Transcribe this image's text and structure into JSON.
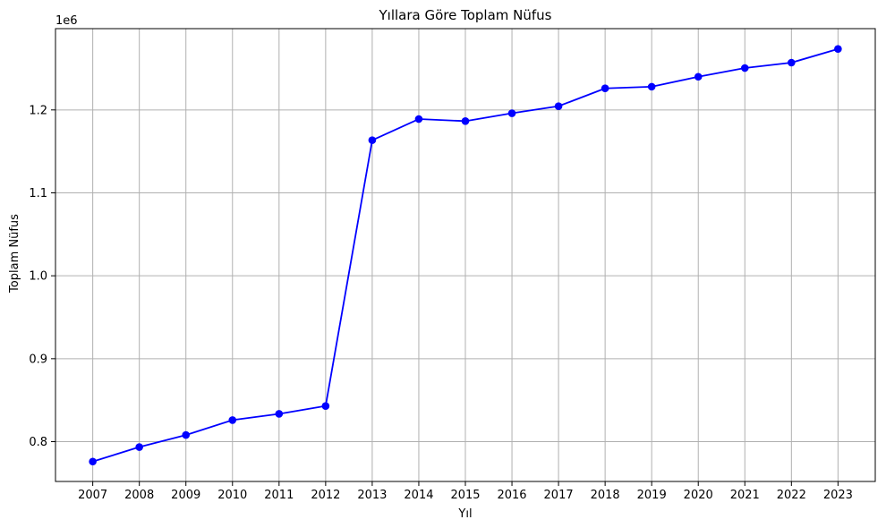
{
  "chart_data": {
    "type": "line",
    "title": "Yıllara Göre Toplam Nüfus",
    "xlabel": "Yıl",
    "ylabel": "Toplam Nüfus",
    "y_offset_label": "1e6",
    "x": [
      2007,
      2008,
      2009,
      2010,
      2011,
      2012,
      2013,
      2014,
      2015,
      2016,
      2017,
      2018,
      2019,
      2020,
      2021,
      2022,
      2023
    ],
    "series": [
      {
        "values": [
          776000,
          793500,
          808000,
          826000,
          833500,
          843000,
          1163500,
          1189000,
          1186500,
          1196000,
          1204500,
          1226000,
          1228000,
          1240000,
          1250500,
          1257000,
          1273500
        ]
      }
    ],
    "yticks": [
      0.8,
      0.9,
      1.0,
      1.1,
      1.2
    ],
    "ytick_labels": [
      "0.8",
      "0.9",
      "1.0",
      "1.1",
      "1.2"
    ],
    "ylim": [
      752000,
      1298000
    ],
    "grid": true,
    "colors": {
      "line": "#0000ff",
      "grid": "#b0b0b0",
      "axes": "#000000"
    }
  }
}
